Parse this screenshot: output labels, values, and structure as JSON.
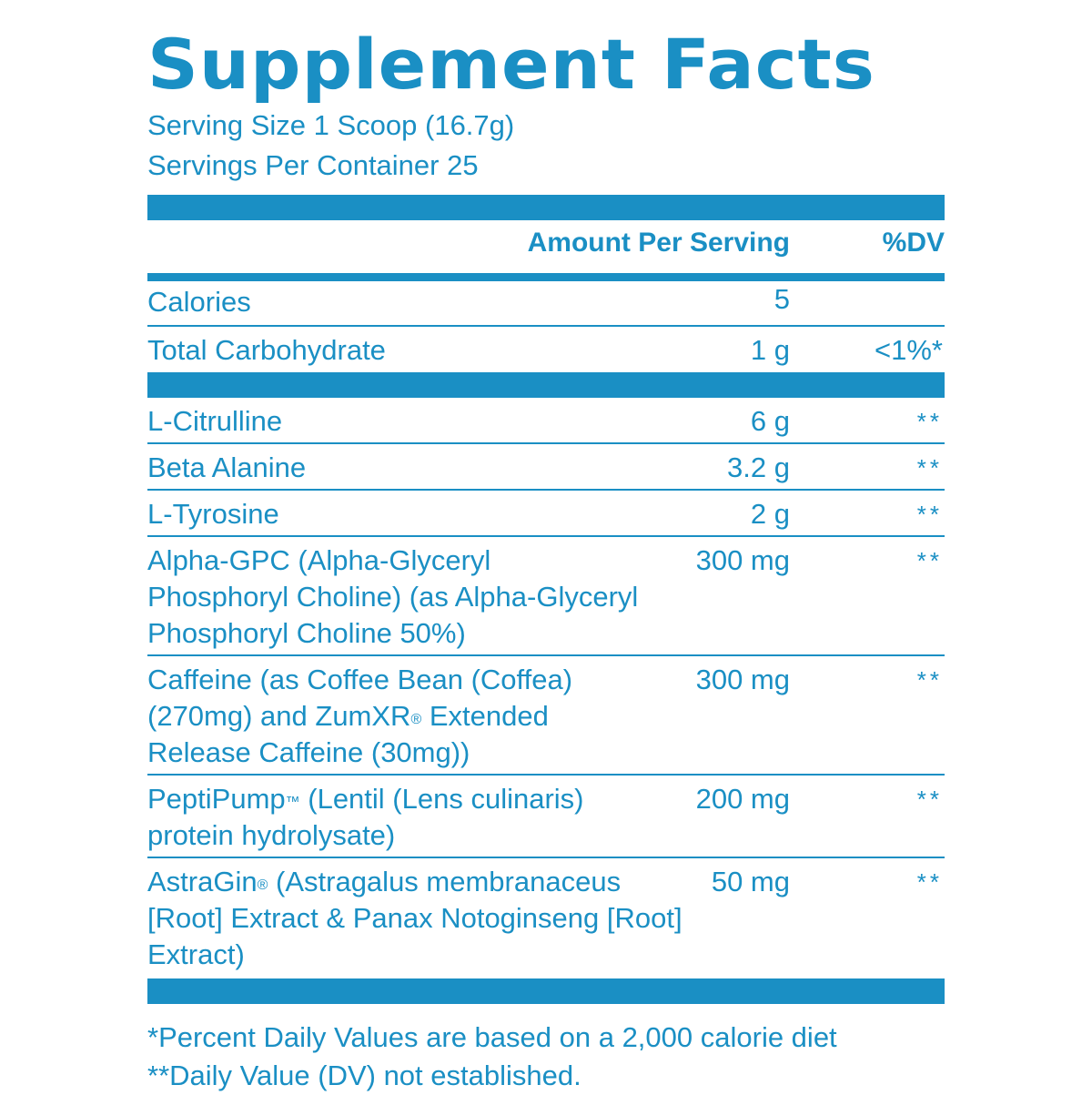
{
  "title": "Supplement Facts",
  "serving_size": "Serving Size 1 Scoop (16.7g)",
  "servings_per_container": "Servings Per Container 25",
  "header": {
    "amount": "Amount Per Serving",
    "dv": "%DV"
  },
  "macros": [
    {
      "name": "Calories",
      "amount": "5",
      "dv": ""
    },
    {
      "name": "Total Carbohydrate",
      "amount": "1 g",
      "dv": "<1%*"
    }
  ],
  "ingredients": [
    {
      "name": "L-Citrulline",
      "amount": "6 g",
      "dv": "**"
    },
    {
      "name": "Beta Alanine",
      "amount": "3.2 g",
      "dv": "**"
    },
    {
      "name": "L-Tyrosine",
      "amount": "2 g",
      "dv": "**"
    },
    {
      "name": "Alpha-GPC (Alpha-Glyceryl Phosphoryl Choline) (as Alpha-Glyceryl Phosphoryl Choline 50%)",
      "amount": "300 mg",
      "dv": "**"
    },
    {
      "name_parts": [
        "Caffeine (as Coffee Bean (Coffea) (270mg) and ZumXR",
        "®",
        " Extended Release Caffeine (30mg))"
      ],
      "amount": "300 mg",
      "dv": "**"
    },
    {
      "name_parts": [
        "PeptiPump",
        "™",
        " (Lentil (Lens culinaris) protein hydrolysate)"
      ],
      "amount": "200 mg",
      "dv": "**"
    },
    {
      "name_parts": [
        "AstraGin",
        "®",
        " (Astragalus membranaceus [Root] Extract & Panax Notoginseng [Root] Extract)"
      ],
      "amount": "50 mg",
      "dv": "**"
    }
  ],
  "footnotes": [
    "*Percent Daily Values are based on a 2,000 calorie diet",
    "**Daily Value (DV) not established."
  ],
  "colors": {
    "brand": "#1a8fc4",
    "background": "#ffffff"
  }
}
